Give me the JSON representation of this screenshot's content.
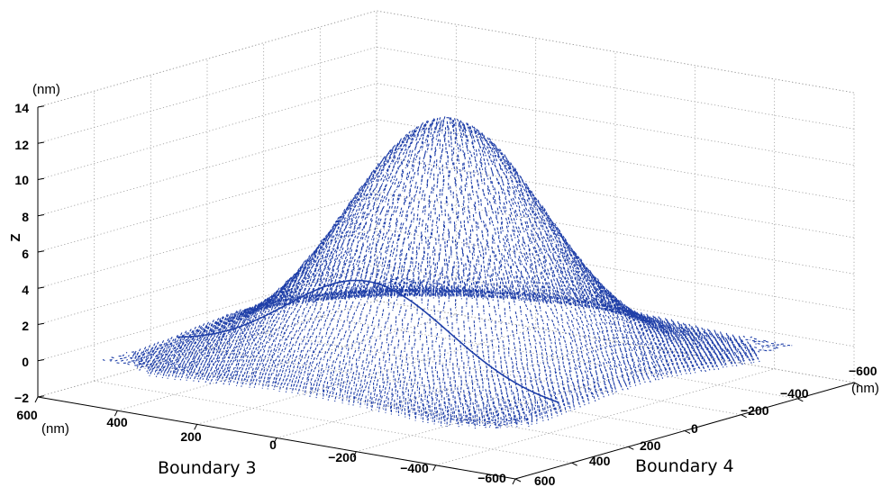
{
  "chart_data": {
    "type": "surface",
    "z_axis": {
      "label": "Z",
      "unit": "(nm)",
      "ticks": [
        "14",
        "12",
        "10",
        "8",
        "6",
        "4",
        "2",
        "0",
        "−2"
      ],
      "range": [
        -2,
        14
      ]
    },
    "x_axis": {
      "label": "Boundary 3",
      "unit": "(nm)",
      "ticks": [
        "600",
        "400",
        "200",
        "0",
        "−200",
        "−400",
        "−600"
      ],
      "range": [
        600,
        -600
      ]
    },
    "y_axis": {
      "label": "Boundary 4",
      "unit": "(nm)",
      "ticks": [
        "−600",
        "−400",
        "−200",
        "0",
        "200",
        "400",
        "600"
      ],
      "range": [
        -600,
        600
      ]
    },
    "surface": {
      "shape": "gaussian bump",
      "peak_z": 13,
      "base_z": 0,
      "center": [
        0,
        0
      ],
      "color": "#1f3fa8",
      "style": "dashed mesh"
    },
    "grid": true
  }
}
